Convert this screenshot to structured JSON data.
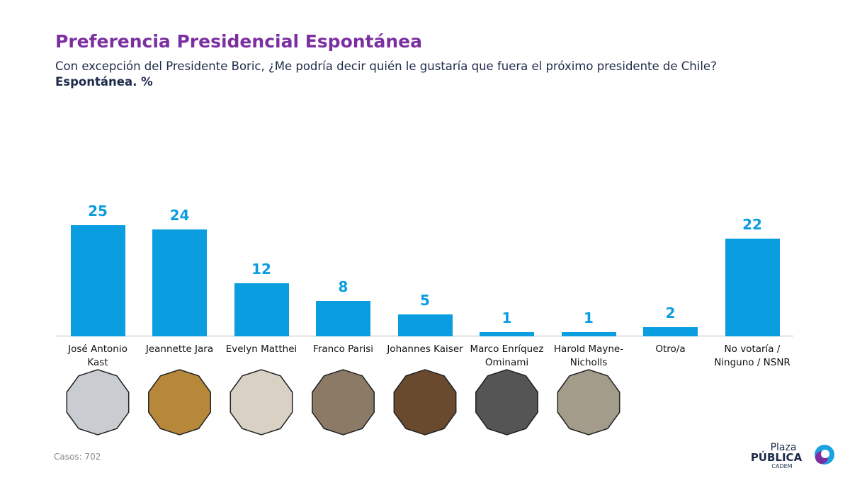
{
  "chart_data": {
    "type": "bar",
    "title": "Preferencia Presidencial Espontánea",
    "subtitle": "Con excepción del Presidente Boric, ¿Me podría decir quién le gustaría que fuera el próximo presidente de Chile?",
    "y_label": "Espontánea. %",
    "categories": [
      "José Antonio Kast",
      "Jeannette Jara",
      "Evelyn Matthei",
      "Franco Parisi",
      "Johannes Kaiser",
      "Marco Enríquez Ominami",
      "Harold Mayne-Nicholls",
      "Otro/a",
      "No votaría / Ninguno / NSNR"
    ],
    "values": [
      25,
      24,
      12,
      8,
      5,
      1,
      1,
      2,
      22
    ],
    "color": "#0a9de0",
    "footnote": "Casos: 702",
    "logo": [
      "Plaza",
      "PÚBLICA",
      "CADEM"
    ]
  }
}
